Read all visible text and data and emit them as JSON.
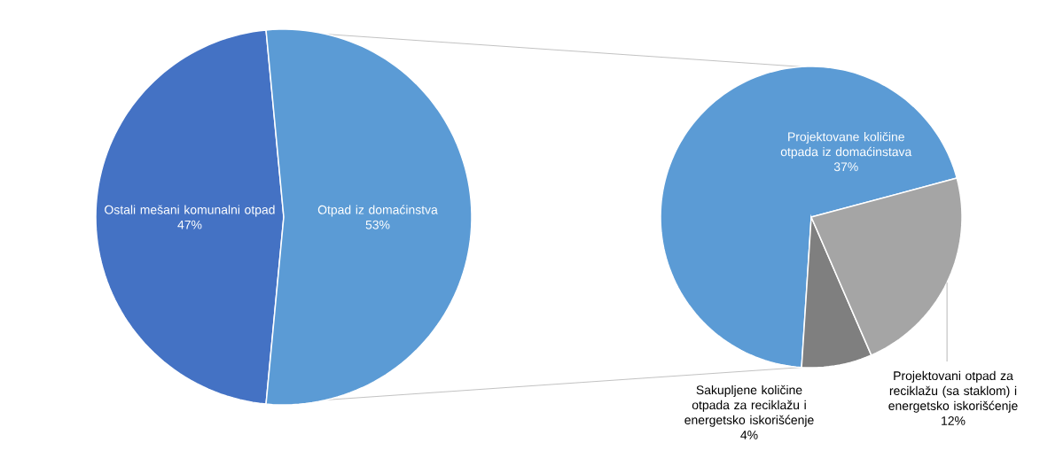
{
  "chart_data": [
    {
      "type": "pie",
      "categories": [
        "Ostali mešani komunalni otpad",
        "Otpad iz domaćinstva"
      ],
      "values": [
        47,
        53
      ],
      "colors": [
        "#4472c4",
        "#5b9bd5"
      ],
      "value_labels": [
        "47%",
        "53%"
      ]
    },
    {
      "type": "pie",
      "categories": [
        "Projektovane količine otpada iz domaćinstava",
        "Sakupljene količine otpada za reciklažu i energetsko iskorišćenje",
        "Projektovani otpad za reciklažu (sa staklom) i energetsko iskorišćenje"
      ],
      "values": [
        37,
        4,
        12
      ],
      "colors": [
        "#5b9bd5",
        "#7f7f7f",
        "#a5a5a5"
      ],
      "value_labels": [
        "37%",
        "4%",
        "12%"
      ]
    }
  ]
}
